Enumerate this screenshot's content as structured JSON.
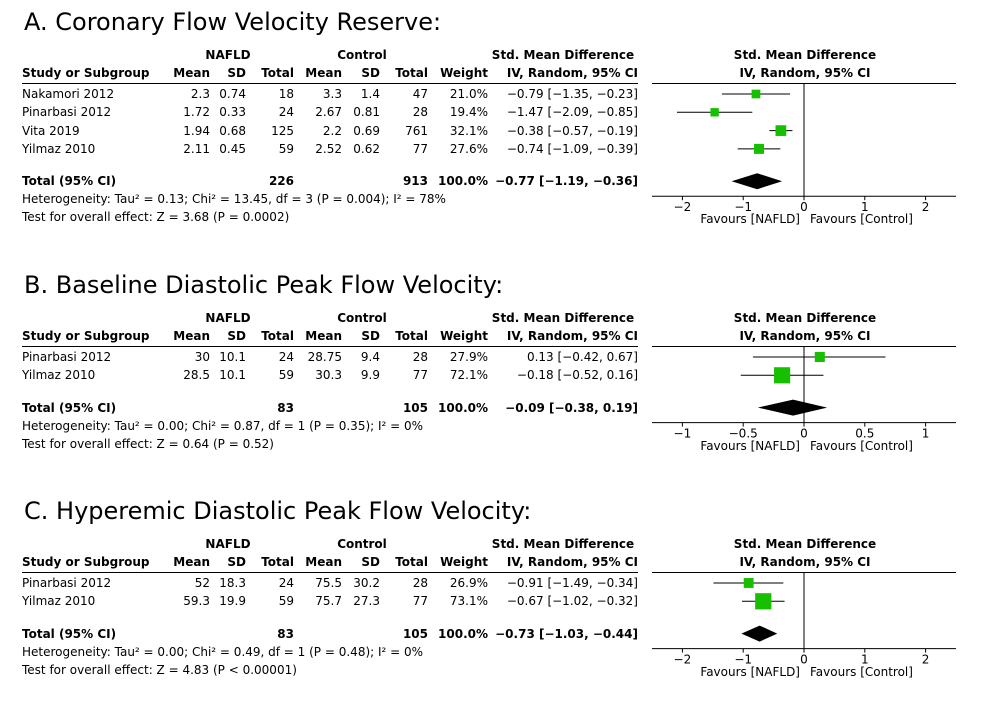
{
  "headers": {
    "study": "Study or Subgroup",
    "group1": "NAFLD",
    "group2": "Control",
    "mean": "Mean",
    "sd": "SD",
    "total": "Total",
    "weight": "Weight",
    "smd": "Std. Mean Difference",
    "iv": "IV, Random, 95% CI"
  },
  "colors": {
    "marker": "#16c000",
    "diamond": "#000000"
  },
  "chart_data": [
    {
      "type": "forest",
      "title": "A. Coronary Flow Velocity Reserve:",
      "studies": [
        {
          "name": "Nakamori 2012",
          "m1": "2.3",
          "sd1": "0.74",
          "n1": "18",
          "m2": "3.3",
          "sd2": "1.4",
          "n2": "47",
          "weight": "21.0%",
          "ci_text": "−0.79 [−1.35, −0.23]",
          "smd": -0.79,
          "lo": -1.35,
          "hi": -0.23,
          "w": 21.0
        },
        {
          "name": "Pinarbasi 2012",
          "m1": "1.72",
          "sd1": "0.33",
          "n1": "24",
          "m2": "2.67",
          "sd2": "0.81",
          "n2": "28",
          "weight": "19.4%",
          "ci_text": "−1.47 [−2.09, −0.85]",
          "smd": -1.47,
          "lo": -2.09,
          "hi": -0.85,
          "w": 19.4
        },
        {
          "name": "Vita 2019",
          "m1": "1.94",
          "sd1": "0.68",
          "n1": "125",
          "m2": "2.2",
          "sd2": "0.69",
          "n2": "761",
          "weight": "32.1%",
          "ci_text": "−0.38 [−0.57, −0.19]",
          "smd": -0.38,
          "lo": -0.57,
          "hi": -0.19,
          "w": 32.1
        },
        {
          "name": "Yilmaz 2010",
          "m1": "2.11",
          "sd1": "0.45",
          "n1": "59",
          "m2": "2.52",
          "sd2": "0.62",
          "n2": "77",
          "weight": "27.6%",
          "ci_text": "−0.74 [−1.09, −0.39]",
          "smd": -0.74,
          "lo": -1.09,
          "hi": -0.39,
          "w": 27.6
        }
      ],
      "total": {
        "label": "Total (95% CI)",
        "n1": "226",
        "n2": "913",
        "weight": "100.0%",
        "ci_text": "−0.77 [−1.19, −0.36]",
        "smd": -0.77,
        "lo": -1.19,
        "hi": -0.36
      },
      "heterogeneity": "Heterogeneity: Tau² = 0.13; Chi² = 13.45, df = 3 (P = 0.004); I² = 78%",
      "overall": "Test for overall effect: Z = 3.68 (P = 0.0002)",
      "xlim": [
        -2.5,
        2.5
      ],
      "ticks": [
        {
          "v": -2,
          "label": "−2"
        },
        {
          "v": -1,
          "label": "−1"
        },
        {
          "v": 0,
          "label": "0"
        },
        {
          "v": 1,
          "label": "1"
        },
        {
          "v": 2,
          "label": "2"
        }
      ],
      "favours_left": "Favours [NAFLD]",
      "favours_right": "Favours [Control]"
    },
    {
      "type": "forest",
      "title": "B. Baseline Diastolic Peak Flow Velocity:",
      "studies": [
        {
          "name": "Pinarbasi 2012",
          "m1": "30",
          "sd1": "10.1",
          "n1": "24",
          "m2": "28.75",
          "sd2": "9.4",
          "n2": "28",
          "weight": "27.9%",
          "ci_text": "0.13 [−0.42, 0.67]",
          "smd": 0.13,
          "lo": -0.42,
          "hi": 0.67,
          "w": 27.9
        },
        {
          "name": "Yilmaz 2010",
          "m1": "28.5",
          "sd1": "10.1",
          "n1": "59",
          "m2": "30.3",
          "sd2": "9.9",
          "n2": "77",
          "weight": "72.1%",
          "ci_text": "−0.18 [−0.52, 0.16]",
          "smd": -0.18,
          "lo": -0.52,
          "hi": 0.16,
          "w": 72.1
        }
      ],
      "total": {
        "label": "Total (95% CI)",
        "n1": "83",
        "n2": "105",
        "weight": "100.0%",
        "ci_text": "−0.09 [−0.38, 0.19]",
        "smd": -0.09,
        "lo": -0.38,
        "hi": 0.19
      },
      "heterogeneity": "Heterogeneity: Tau² = 0.00; Chi² = 0.87, df = 1 (P = 0.35); I² = 0%",
      "overall": "Test for overall effect: Z = 0.64 (P = 0.52)",
      "xlim": [
        -1.25,
        1.25
      ],
      "ticks": [
        {
          "v": -1,
          "label": "−1"
        },
        {
          "v": -0.5,
          "label": "−0.5"
        },
        {
          "v": 0,
          "label": "0"
        },
        {
          "v": 0.5,
          "label": "0.5"
        },
        {
          "v": 1,
          "label": "1"
        }
      ],
      "favours_left": "Favours [NAFLD]",
      "favours_right": "Favours [Control]"
    },
    {
      "type": "forest",
      "title": "C. Hyperemic Diastolic Peak Flow Velocity:",
      "studies": [
        {
          "name": "Pinarbasi 2012",
          "m1": "52",
          "sd1": "18.3",
          "n1": "24",
          "m2": "75.5",
          "sd2": "30.2",
          "n2": "28",
          "weight": "26.9%",
          "ci_text": "−0.91 [−1.49, −0.34]",
          "smd": -0.91,
          "lo": -1.49,
          "hi": -0.34,
          "w": 26.9
        },
        {
          "name": "Yilmaz 2010",
          "m1": "59.3",
          "sd1": "19.9",
          "n1": "59",
          "m2": "75.7",
          "sd2": "27.3",
          "n2": "77",
          "weight": "73.1%",
          "ci_text": "−0.67 [−1.02, −0.32]",
          "smd": -0.67,
          "lo": -1.02,
          "hi": -0.32,
          "w": 73.1
        }
      ],
      "total": {
        "label": "Total (95% CI)",
        "n1": "83",
        "n2": "105",
        "weight": "100.0%",
        "ci_text": "−0.73 [−1.03, −0.44]",
        "smd": -0.73,
        "lo": -1.03,
        "hi": -0.44
      },
      "heterogeneity": "Heterogeneity: Tau² = 0.00; Chi² = 0.49, df = 1 (P = 0.48); I² = 0%",
      "overall": "Test for overall effect: Z = 4.83 (P < 0.00001)",
      "xlim": [
        -2.5,
        2.5
      ],
      "ticks": [
        {
          "v": -2,
          "label": "−2"
        },
        {
          "v": -1,
          "label": "−1"
        },
        {
          "v": 0,
          "label": "0"
        },
        {
          "v": 1,
          "label": "1"
        },
        {
          "v": 2,
          "label": "2"
        }
      ],
      "favours_left": "Favours [NAFLD]",
      "favours_right": "Favours [Control]"
    }
  ]
}
